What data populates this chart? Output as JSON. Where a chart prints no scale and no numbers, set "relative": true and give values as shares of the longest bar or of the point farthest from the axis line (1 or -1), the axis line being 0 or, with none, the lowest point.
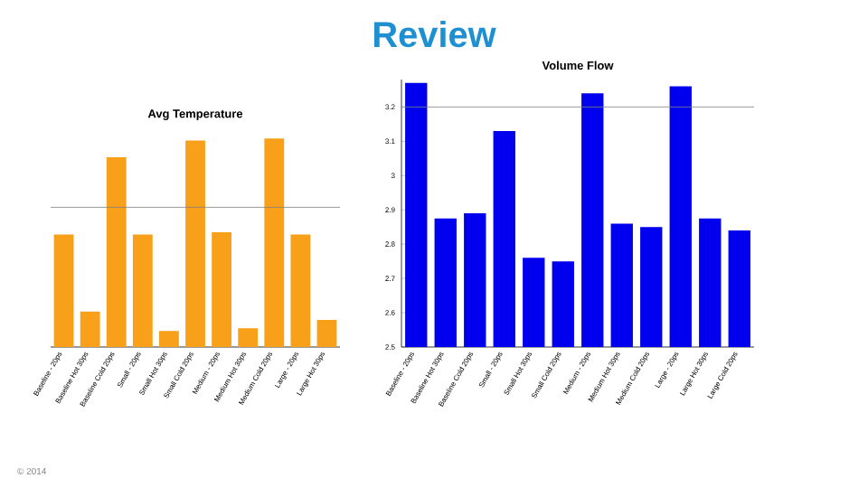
{
  "chart_data": [
    {
      "type": "other",
      "title": "Review",
      "annotations": [
        "© 2014"
      ]
    },
    {
      "type": "bar",
      "title": "Avg Temperature",
      "relative": true,
      "color": "#f9a01b",
      "categories": [
        "Baseline - 20ps",
        "Baseline Hot 30ps",
        "Baseline Cold 20ps",
        "Small - 20ps",
        "Small Hot 30ps",
        "Small Cold 20ps",
        "Medium - 20ps",
        "Medium Hot 30ps",
        "Medium Cold 20ps",
        "Large - 20ps",
        "Large Hot 30ps"
      ],
      "values": [
        0.54,
        0.17,
        0.91,
        0.54,
        0.077,
        0.99,
        0.55,
        0.09,
        1,
        0.54,
        0.13
      ],
      "ref_lines": [
        {
          "axis": "y",
          "value": 0.67,
          "color": "#808080"
        }
      ]
    },
    {
      "type": "bar",
      "title": "Volume Flow",
      "color": "#0000ee",
      "categories": [
        "Baseline - 20ps",
        "Baseline Hot 30ps",
        "Baseline Cold 20ps",
        "Small - 20ps",
        "Small Hot 30ps",
        "Small Cold 20ps",
        "Medium - 20ps",
        "Medium Hot 30ps",
        "Medium Cold 20ps",
        "Large - 20ps",
        "Large Hot 30ps",
        "Large Cold 20ps"
      ],
      "values": [
        3.27,
        2.875,
        2.89,
        3.13,
        2.76,
        2.75,
        3.24,
        2.86,
        2.85,
        3.26,
        2.875,
        2.84
      ],
      "ylim": [
        2.5,
        3.28
      ],
      "yticks": [
        2.5,
        2.6,
        2.7,
        2.8,
        2.9,
        3,
        3.1,
        3.2
      ],
      "ref_lines": [
        {
          "axis": "y",
          "value": 3.2,
          "color": "#808080"
        }
      ]
    }
  ]
}
